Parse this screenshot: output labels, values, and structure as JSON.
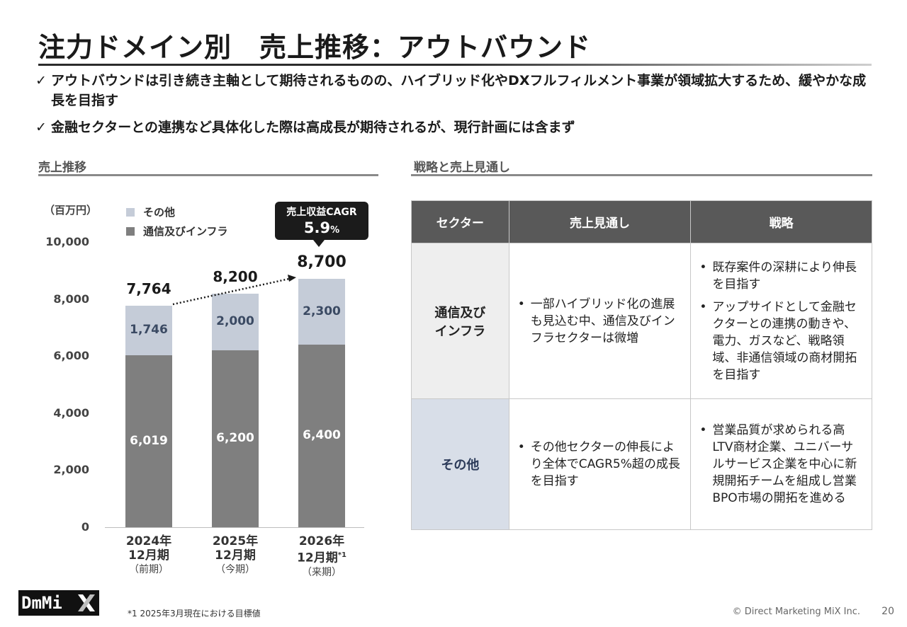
{
  "title": "注力ドメイン別　売上推移：アウトバウンド",
  "bullets": [
    {
      "check": "✓",
      "text": "アウトバウンドは引き続き主軸として期待されるものの、ハイブリッド化やDXフルフィルメント事業が領域拡大するため、緩やかな成長を目指す"
    },
    {
      "check": "✓",
      "text": "金融セクターとの連携など具体化した際は高成長が期待されるが、現行計画には含まず"
    }
  ],
  "left_section": {
    "heading": "売上推移"
  },
  "right_section": {
    "heading": "戦略と売上見通し"
  },
  "chart_data": {
    "type": "bar",
    "stacked": true,
    "unit": "（百万円）",
    "ylim": [
      0,
      10000
    ],
    "yticks": [
      "10,000",
      "8,000",
      "6,000",
      "4,000",
      "2,000",
      "0"
    ],
    "categories": [
      {
        "line1": "2024年",
        "line2": "12月期",
        "note": "",
        "line3": "（前期）"
      },
      {
        "line1": "2025年",
        "line2": "12月期",
        "note": "",
        "line3": "（今期）"
      },
      {
        "line1": "2026年",
        "line2": "12月期",
        "note": "*1",
        "line3": "（来期）"
      }
    ],
    "series": [
      {
        "name": "通信及びインフラ",
        "color": "#7f7f7f",
        "values": [
          6019,
          6200,
          6400
        ],
        "labels": [
          "6,019",
          "6,200",
          "6,400"
        ]
      },
      {
        "name": "その他",
        "color": "#c5ccd8",
        "values": [
          1746,
          2000,
          2300
        ],
        "labels": [
          "1,746",
          "2,000",
          "2,300"
        ]
      }
    ],
    "totals": [
      "7,764",
      "8,200",
      "8,700"
    ],
    "cagr_label": "売上収益CAGR",
    "cagr_value": "5.9",
    "cagr_unit": "%"
  },
  "table": {
    "headers": [
      "セクター",
      "売上見通し",
      "戦略"
    ],
    "rows": [
      {
        "sector_lines": [
          "通信及び",
          "インフラ"
        ],
        "outlook": [
          "一部ハイブリッド化の進展も見込む中、通信及びインフラセクターは微増"
        ],
        "strategy": [
          "既存案件の深耕により伸長を目指す",
          "アップサイドとして金融セクターとの連携の動きや、電力、ガスなど、戦略領域、非通信領域の商材開拓を目指す"
        ]
      },
      {
        "sector_lines": [
          "その他"
        ],
        "outlook": [
          "その他セクターの伸長により全体でCAGR5%超の成長を目指す"
        ],
        "strategy": [
          "営業品質が求められる高LTV商材企業、ユニバーサルサービス企業を中心に新規開拓チームを組成し営業BPO市場の開拓を進める"
        ]
      }
    ]
  },
  "footer": {
    "logo_text": "DmMi",
    "footnote": "*1  2025年3月現在における目標値",
    "copyright": "© Direct Marketing MiX Inc.",
    "page_number": "20"
  }
}
